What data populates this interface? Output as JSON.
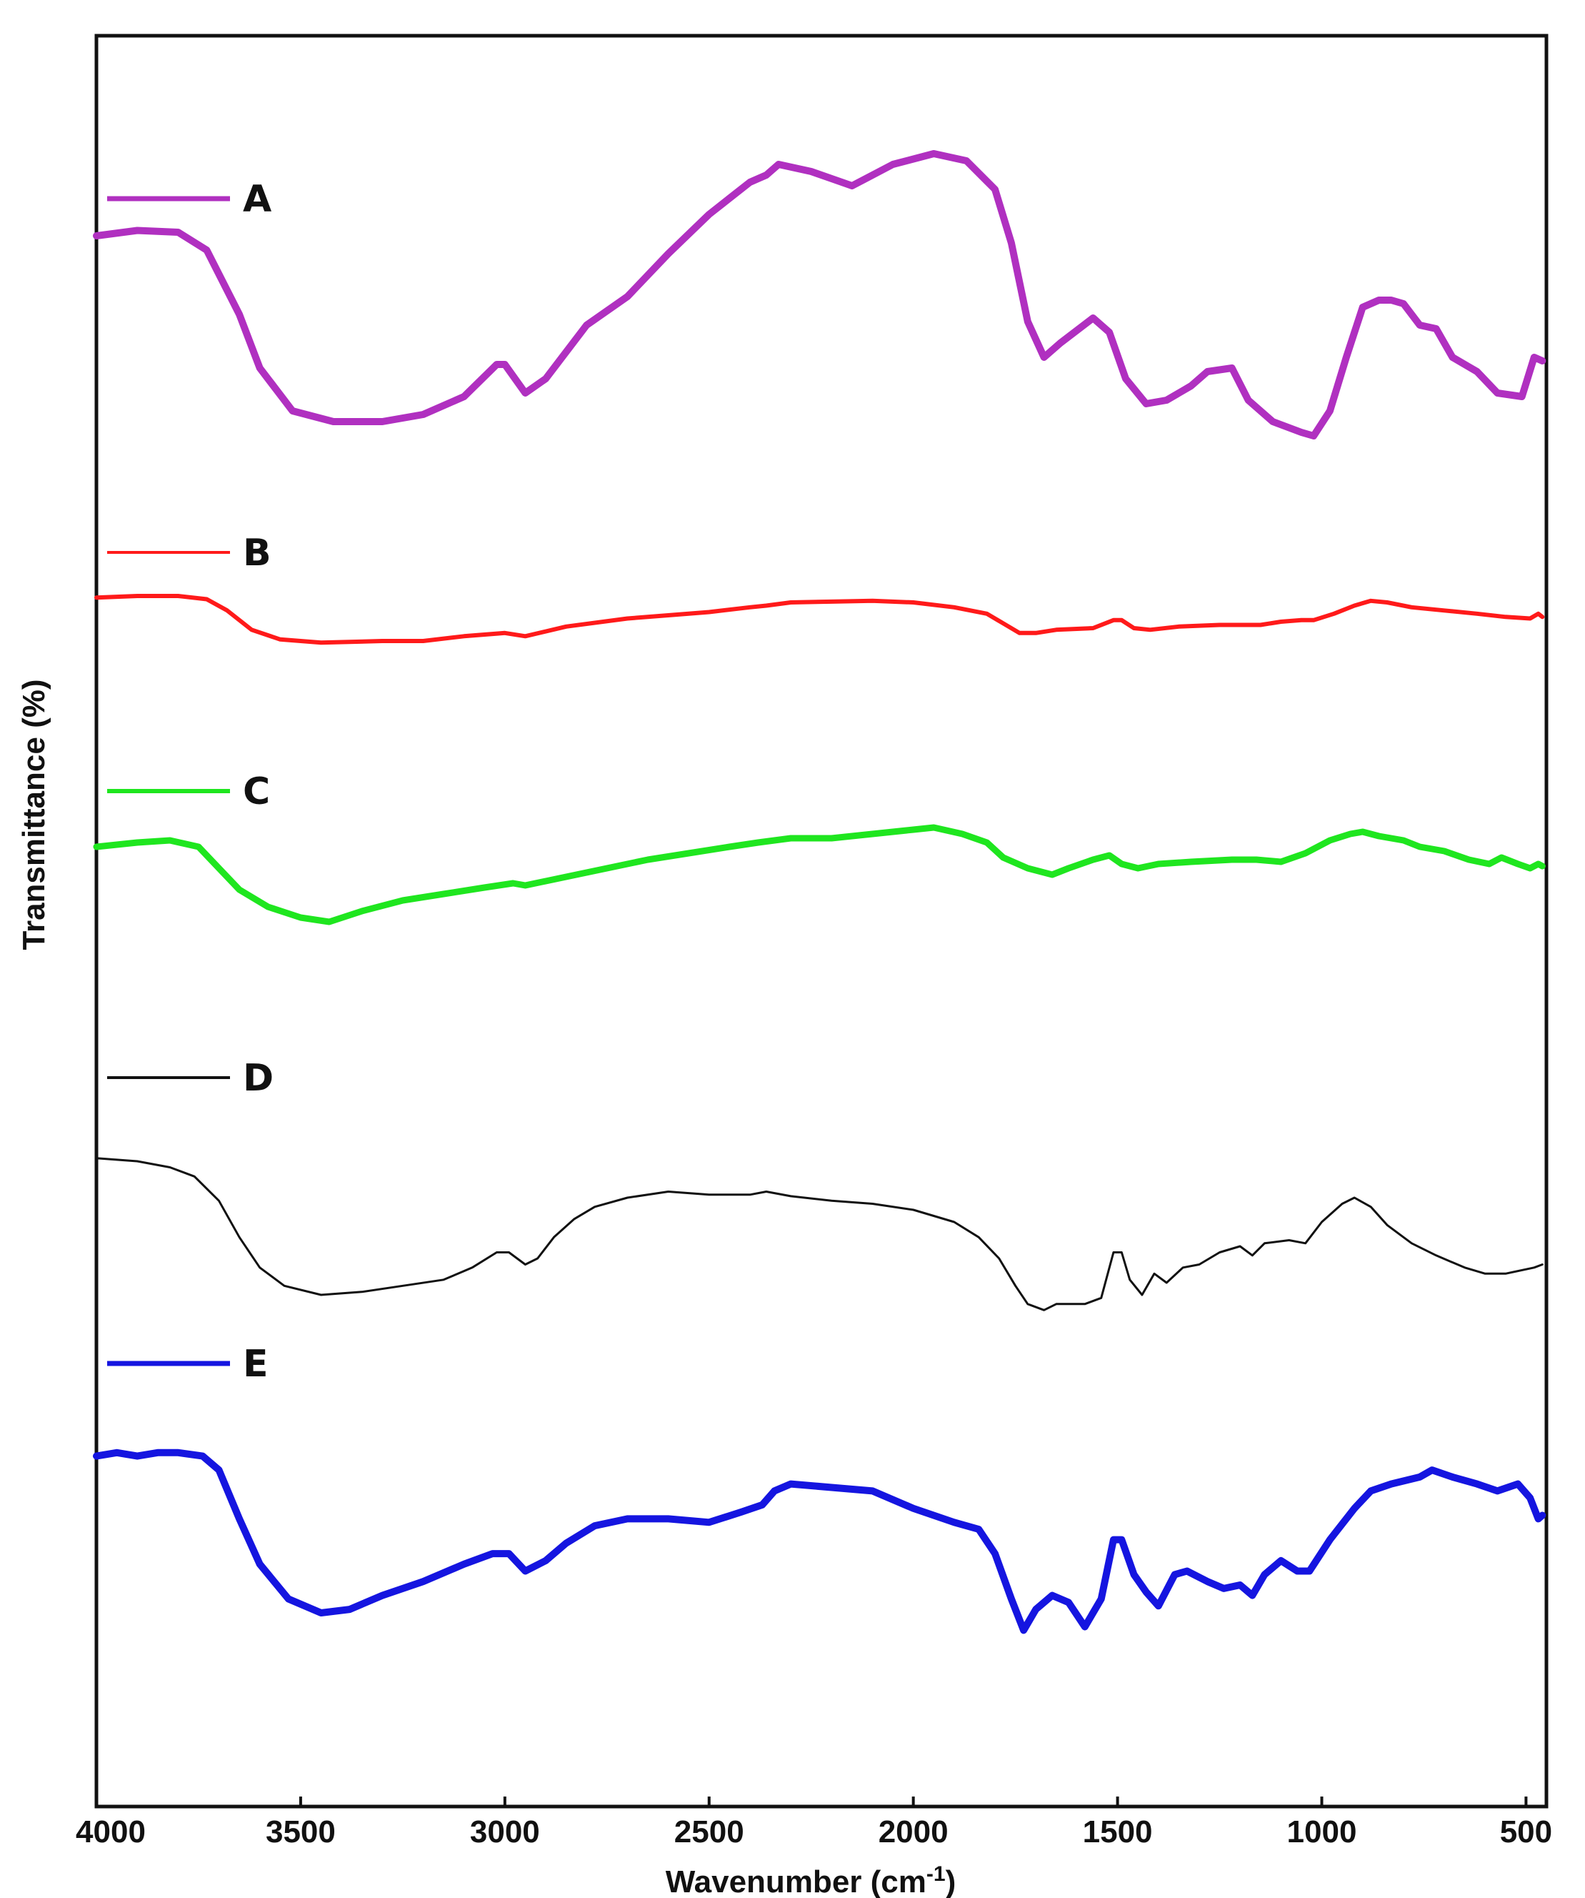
{
  "chart_data": {
    "type": "line",
    "xlabel": "Wavenumber (cm",
    "xlabel_sup": "-1",
    "xlabel_close": ")",
    "ylabel": "Transmittance (%)",
    "xlim": [
      4000,
      450
    ],
    "x_reversed": true,
    "grid": false,
    "legend_placement": "left, above each trace",
    "x_ticks": [
      {
        "value": 4000,
        "label": "4000"
      },
      {
        "value": 3500,
        "label": "3500"
      },
      {
        "value": 3000,
        "label": "3000"
      },
      {
        "value": 2500,
        "label": "2500"
      },
      {
        "value": 2000,
        "label": "2000"
      },
      {
        "value": 1500,
        "label": "1500"
      },
      {
        "value": 1000,
        "label": "1000"
      },
      {
        "value": 500,
        "label": "500"
      }
    ],
    "series": [
      {
        "name": "A",
        "color": "#b030c0",
        "stroke": 10,
        "points": [
          [
            4000,
            0.82
          ],
          [
            3900,
            0.835
          ],
          [
            3800,
            0.83
          ],
          [
            3730,
            0.78
          ],
          [
            3650,
            0.6
          ],
          [
            3600,
            0.45
          ],
          [
            3520,
            0.33
          ],
          [
            3420,
            0.3
          ],
          [
            3300,
            0.3
          ],
          [
            3200,
            0.32
          ],
          [
            3100,
            0.37
          ],
          [
            3020,
            0.46
          ],
          [
            3000,
            0.46
          ],
          [
            2950,
            0.38
          ],
          [
            2900,
            0.42
          ],
          [
            2800,
            0.57
          ],
          [
            2700,
            0.65
          ],
          [
            2600,
            0.77
          ],
          [
            2500,
            0.88
          ],
          [
            2400,
            0.97
          ],
          [
            2360,
            0.99
          ],
          [
            2330,
            1.02
          ],
          [
            2250,
            1.0
          ],
          [
            2150,
            0.96
          ],
          [
            2050,
            1.02
          ],
          [
            1950,
            1.05
          ],
          [
            1870,
            1.03
          ],
          [
            1800,
            0.95
          ],
          [
            1760,
            0.8
          ],
          [
            1720,
            0.58
          ],
          [
            1680,
            0.48
          ],
          [
            1640,
            0.52
          ],
          [
            1560,
            0.59
          ],
          [
            1520,
            0.55
          ],
          [
            1480,
            0.42
          ],
          [
            1430,
            0.35
          ],
          [
            1380,
            0.36
          ],
          [
            1320,
            0.4
          ],
          [
            1280,
            0.44
          ],
          [
            1220,
            0.45
          ],
          [
            1180,
            0.36
          ],
          [
            1120,
            0.3
          ],
          [
            1050,
            0.27
          ],
          [
            1020,
            0.26
          ],
          [
            980,
            0.33
          ],
          [
            940,
            0.48
          ],
          [
            900,
            0.62
          ],
          [
            860,
            0.64
          ],
          [
            830,
            0.64
          ],
          [
            800,
            0.63
          ],
          [
            760,
            0.57
          ],
          [
            720,
            0.56
          ],
          [
            680,
            0.48
          ],
          [
            620,
            0.44
          ],
          [
            570,
            0.38
          ],
          [
            510,
            0.37
          ],
          [
            480,
            0.48
          ],
          [
            460,
            0.47
          ]
        ]
      },
      {
        "name": "B",
        "color": "#ff1a1a",
        "stroke": 6,
        "points": [
          [
            4000,
            0.8
          ],
          [
            3900,
            0.81
          ],
          [
            3800,
            0.81
          ],
          [
            3730,
            0.79
          ],
          [
            3680,
            0.72
          ],
          [
            3620,
            0.6
          ],
          [
            3550,
            0.54
          ],
          [
            3450,
            0.52
          ],
          [
            3300,
            0.53
          ],
          [
            3200,
            0.53
          ],
          [
            3100,
            0.56
          ],
          [
            3000,
            0.58
          ],
          [
            2950,
            0.56
          ],
          [
            2850,
            0.62
          ],
          [
            2700,
            0.67
          ],
          [
            2600,
            0.69
          ],
          [
            2500,
            0.71
          ],
          [
            2400,
            0.74
          ],
          [
            2360,
            0.75
          ],
          [
            2300,
            0.77
          ],
          [
            2200,
            0.775
          ],
          [
            2100,
            0.78
          ],
          [
            2000,
            0.77
          ],
          [
            1900,
            0.74
          ],
          [
            1820,
            0.7
          ],
          [
            1780,
            0.64
          ],
          [
            1740,
            0.58
          ],
          [
            1700,
            0.58
          ],
          [
            1650,
            0.6
          ],
          [
            1560,
            0.61
          ],
          [
            1510,
            0.66
          ],
          [
            1490,
            0.66
          ],
          [
            1460,
            0.61
          ],
          [
            1420,
            0.6
          ],
          [
            1350,
            0.62
          ],
          [
            1250,
            0.63
          ],
          [
            1150,
            0.63
          ],
          [
            1100,
            0.65
          ],
          [
            1050,
            0.66
          ],
          [
            1020,
            0.66
          ],
          [
            970,
            0.7
          ],
          [
            920,
            0.75
          ],
          [
            880,
            0.78
          ],
          [
            840,
            0.77
          ],
          [
            780,
            0.74
          ],
          [
            700,
            0.72
          ],
          [
            620,
            0.7
          ],
          [
            550,
            0.68
          ],
          [
            490,
            0.67
          ],
          [
            470,
            0.7
          ],
          [
            460,
            0.68
          ]
        ]
      },
      {
        "name": "C",
        "color": "#1fe61f",
        "stroke": 9,
        "points": [
          [
            4000,
            0.8
          ],
          [
            3900,
            0.82
          ],
          [
            3820,
            0.83
          ],
          [
            3750,
            0.8
          ],
          [
            3700,
            0.7
          ],
          [
            3650,
            0.6
          ],
          [
            3580,
            0.52
          ],
          [
            3500,
            0.47
          ],
          [
            3430,
            0.45
          ],
          [
            3350,
            0.5
          ],
          [
            3250,
            0.55
          ],
          [
            3150,
            0.58
          ],
          [
            3050,
            0.61
          ],
          [
            2980,
            0.63
          ],
          [
            2950,
            0.62
          ],
          [
            2850,
            0.66
          ],
          [
            2750,
            0.7
          ],
          [
            2650,
            0.74
          ],
          [
            2550,
            0.77
          ],
          [
            2450,
            0.8
          ],
          [
            2380,
            0.82
          ],
          [
            2340,
            0.83
          ],
          [
            2300,
            0.84
          ],
          [
            2200,
            0.84
          ],
          [
            2100,
            0.86
          ],
          [
            2000,
            0.88
          ],
          [
            1950,
            0.89
          ],
          [
            1880,
            0.86
          ],
          [
            1820,
            0.82
          ],
          [
            1780,
            0.75
          ],
          [
            1720,
            0.7
          ],
          [
            1660,
            0.67
          ],
          [
            1620,
            0.7
          ],
          [
            1560,
            0.74
          ],
          [
            1520,
            0.76
          ],
          [
            1490,
            0.72
          ],
          [
            1450,
            0.7
          ],
          [
            1400,
            0.72
          ],
          [
            1320,
            0.73
          ],
          [
            1220,
            0.74
          ],
          [
            1160,
            0.74
          ],
          [
            1100,
            0.73
          ],
          [
            1040,
            0.77
          ],
          [
            980,
            0.83
          ],
          [
            930,
            0.86
          ],
          [
            900,
            0.87
          ],
          [
            860,
            0.85
          ],
          [
            800,
            0.83
          ],
          [
            760,
            0.8
          ],
          [
            700,
            0.78
          ],
          [
            640,
            0.74
          ],
          [
            590,
            0.72
          ],
          [
            560,
            0.75
          ],
          [
            520,
            0.72
          ],
          [
            490,
            0.7
          ],
          [
            470,
            0.72
          ],
          [
            460,
            0.71
          ]
        ]
      },
      {
        "name": "D",
        "color": "#111111",
        "stroke": 3,
        "points": [
          [
            4000,
            0.86
          ],
          [
            3900,
            0.85
          ],
          [
            3820,
            0.83
          ],
          [
            3760,
            0.8
          ],
          [
            3700,
            0.72
          ],
          [
            3650,
            0.6
          ],
          [
            3600,
            0.5
          ],
          [
            3540,
            0.44
          ],
          [
            3450,
            0.41
          ],
          [
            3350,
            0.42
          ],
          [
            3250,
            0.44
          ],
          [
            3150,
            0.46
          ],
          [
            3080,
            0.5
          ],
          [
            3020,
            0.55
          ],
          [
            2990,
            0.55
          ],
          [
            2950,
            0.51
          ],
          [
            2920,
            0.53
          ],
          [
            2880,
            0.6
          ],
          [
            2830,
            0.66
          ],
          [
            2780,
            0.7
          ],
          [
            2700,
            0.73
          ],
          [
            2600,
            0.75
          ],
          [
            2500,
            0.74
          ],
          [
            2400,
            0.74
          ],
          [
            2360,
            0.75
          ],
          [
            2300,
            0.735
          ],
          [
            2200,
            0.72
          ],
          [
            2100,
            0.71
          ],
          [
            2000,
            0.69
          ],
          [
            1900,
            0.65
          ],
          [
            1840,
            0.6
          ],
          [
            1790,
            0.53
          ],
          [
            1750,
            0.44
          ],
          [
            1720,
            0.38
          ],
          [
            1680,
            0.36
          ],
          [
            1650,
            0.38
          ],
          [
            1610,
            0.38
          ],
          [
            1580,
            0.38
          ],
          [
            1540,
            0.4
          ],
          [
            1510,
            0.55
          ],
          [
            1490,
            0.55
          ],
          [
            1470,
            0.46
          ],
          [
            1440,
            0.41
          ],
          [
            1410,
            0.48
          ],
          [
            1380,
            0.45
          ],
          [
            1340,
            0.5
          ],
          [
            1300,
            0.51
          ],
          [
            1250,
            0.55
          ],
          [
            1200,
            0.57
          ],
          [
            1170,
            0.54
          ],
          [
            1140,
            0.58
          ],
          [
            1080,
            0.59
          ],
          [
            1040,
            0.58
          ],
          [
            1000,
            0.65
          ],
          [
            950,
            0.71
          ],
          [
            920,
            0.73
          ],
          [
            880,
            0.7
          ],
          [
            840,
            0.64
          ],
          [
            780,
            0.58
          ],
          [
            720,
            0.54
          ],
          [
            650,
            0.5
          ],
          [
            600,
            0.48
          ],
          [
            550,
            0.48
          ],
          [
            480,
            0.5
          ],
          [
            460,
            0.51
          ]
        ]
      },
      {
        "name": "E",
        "color": "#1515e0",
        "stroke": 10,
        "points": [
          [
            4000,
            0.86
          ],
          [
            3950,
            0.87
          ],
          [
            3900,
            0.86
          ],
          [
            3850,
            0.87
          ],
          [
            3800,
            0.87
          ],
          [
            3740,
            0.86
          ],
          [
            3700,
            0.82
          ],
          [
            3650,
            0.68
          ],
          [
            3600,
            0.55
          ],
          [
            3530,
            0.45
          ],
          [
            3450,
            0.41
          ],
          [
            3380,
            0.42
          ],
          [
            3300,
            0.46
          ],
          [
            3200,
            0.5
          ],
          [
            3100,
            0.55
          ],
          [
            3030,
            0.58
          ],
          [
            2990,
            0.58
          ],
          [
            2950,
            0.53
          ],
          [
            2900,
            0.56
          ],
          [
            2850,
            0.61
          ],
          [
            2780,
            0.66
          ],
          [
            2700,
            0.68
          ],
          [
            2600,
            0.68
          ],
          [
            2500,
            0.67
          ],
          [
            2420,
            0.7
          ],
          [
            2370,
            0.72
          ],
          [
            2340,
            0.76
          ],
          [
            2300,
            0.78
          ],
          [
            2200,
            0.77
          ],
          [
            2100,
            0.76
          ],
          [
            2000,
            0.71
          ],
          [
            1900,
            0.67
          ],
          [
            1840,
            0.65
          ],
          [
            1800,
            0.58
          ],
          [
            1760,
            0.45
          ],
          [
            1730,
            0.36
          ],
          [
            1700,
            0.42
          ],
          [
            1660,
            0.46
          ],
          [
            1620,
            0.44
          ],
          [
            1580,
            0.37
          ],
          [
            1540,
            0.45
          ],
          [
            1510,
            0.62
          ],
          [
            1490,
            0.62
          ],
          [
            1460,
            0.52
          ],
          [
            1430,
            0.47
          ],
          [
            1400,
            0.43
          ],
          [
            1360,
            0.52
          ],
          [
            1330,
            0.53
          ],
          [
            1280,
            0.5
          ],
          [
            1240,
            0.48
          ],
          [
            1200,
            0.49
          ],
          [
            1170,
            0.46
          ],
          [
            1140,
            0.52
          ],
          [
            1100,
            0.56
          ],
          [
            1060,
            0.53
          ],
          [
            1030,
            0.53
          ],
          [
            980,
            0.62
          ],
          [
            920,
            0.71
          ],
          [
            880,
            0.76
          ],
          [
            830,
            0.78
          ],
          [
            760,
            0.8
          ],
          [
            730,
            0.82
          ],
          [
            680,
            0.8
          ],
          [
            620,
            0.78
          ],
          [
            570,
            0.76
          ],
          [
            520,
            0.78
          ],
          [
            490,
            0.74
          ],
          [
            470,
            0.68
          ],
          [
            460,
            0.69
          ]
        ]
      }
    ]
  }
}
